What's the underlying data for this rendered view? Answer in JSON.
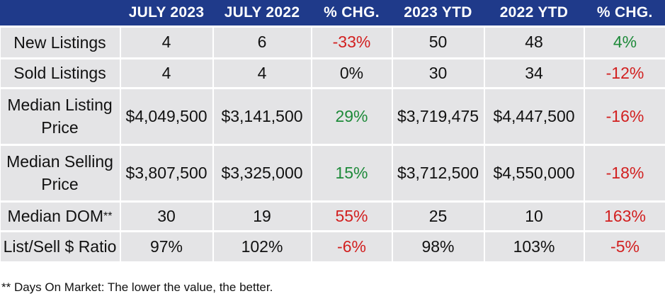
{
  "header": {
    "corner": "",
    "columns": [
      "JULY 2023",
      "JULY 2022",
      "% CHG.",
      "2023 YTD",
      "2022 YTD",
      "% CHG."
    ]
  },
  "rows": [
    {
      "label": "New Listings",
      "values": [
        "4",
        "6",
        "-33%",
        "50",
        "48",
        "4%"
      ],
      "chg1_status": "neg",
      "chg2_status": "pos"
    },
    {
      "label": "Sold Listings",
      "values": [
        "4",
        "4",
        "0%",
        "30",
        "34",
        "-12%"
      ],
      "chg1_status": "zero",
      "chg2_status": "neg"
    },
    {
      "label_line1": "Median Listing",
      "label_line2": "Price",
      "values": [
        "$4,049,500",
        "$3,141,500",
        "29%",
        "$3,719,475",
        "$4,447,500",
        "-16%"
      ],
      "chg1_status": "pos",
      "chg2_status": "neg"
    },
    {
      "label_line1": "Median Selling",
      "label_line2": "Price",
      "values": [
        "$3,807,500",
        "$3,325,000",
        "15%",
        "$3,712,500",
        "$4,550,000",
        "-18%"
      ],
      "chg1_status": "pos",
      "chg2_status": "neg"
    },
    {
      "label": "Median DOM",
      "label_suffix": "**",
      "values": [
        "30",
        "19",
        "55%",
        "25",
        "10",
        "163%"
      ],
      "chg1_status": "neg",
      "chg2_status": "neg"
    },
    {
      "label": "List/Sell $ Ratio",
      "values": [
        "97%",
        "102%",
        "-6%",
        "98%",
        "103%",
        "-5%"
      ],
      "chg1_status": "neg",
      "chg2_status": "neg"
    }
  ],
  "footnote": "** Days On Market: The lower the value, the better.",
  "colors": {
    "header_bg": "#1f3a8a",
    "cell_bg": "#e4e4e6",
    "negative": "#d22020",
    "positive": "#1e8a3a"
  }
}
